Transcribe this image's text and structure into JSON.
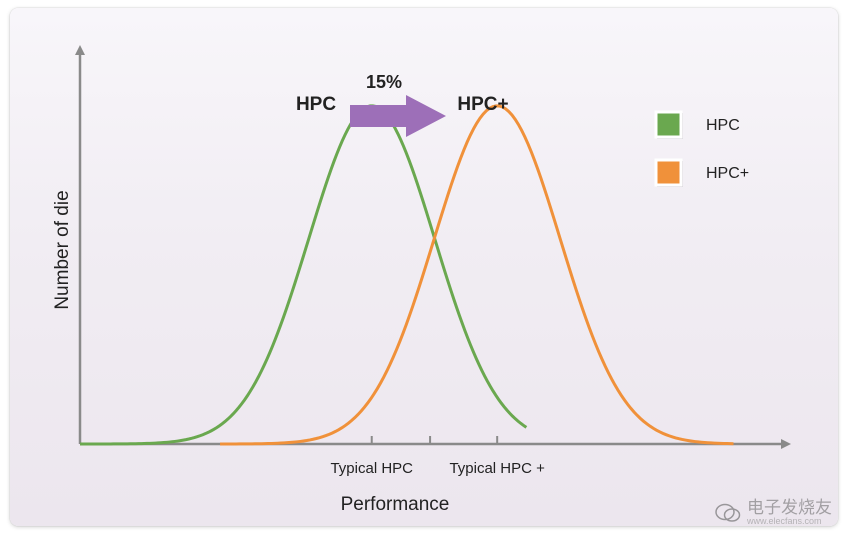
{
  "chart_data": {
    "type": "line",
    "title": "",
    "xlabel": "Performance",
    "ylabel": "Number of die",
    "x_ticks": [
      {
        "label": "Typical HPC",
        "x": 0.5
      },
      {
        "label": "",
        "x": 0.6
      },
      {
        "label": "Typical HPC +",
        "x": 0.715
      }
    ],
    "xlim": [
      0,
      1.21
    ],
    "ylim": [
      0,
      1.1
    ],
    "grid": false,
    "legend": {
      "placement": "top-right"
    },
    "series": [
      {
        "name": "HPC",
        "color": "#6aa84f",
        "mean": 0.5,
        "sd": 0.108,
        "peak": 1.0,
        "x_range": [
          0.0,
          0.765
        ]
      },
      {
        "name": "HPC+",
        "color": "#f0913a",
        "mean": 0.715,
        "sd": 0.108,
        "peak": 1.0,
        "x_range": [
          0.24,
          1.12
        ]
      }
    ],
    "annotations": {
      "left_peak_label": "HPC",
      "right_peak_label": "HPC+",
      "shift_label": "15%",
      "arrow_color": "#9d6fb8"
    }
  },
  "watermark": {
    "text": "电子发烧友",
    "url_text": "www.elecfans.com"
  }
}
